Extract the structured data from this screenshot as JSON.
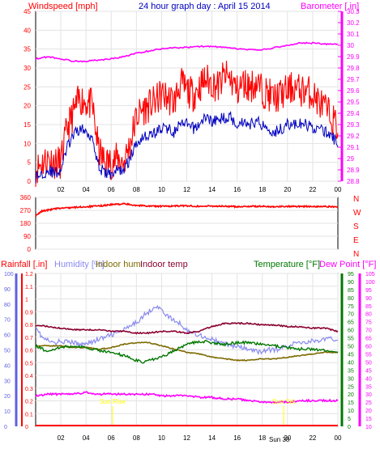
{
  "header": {
    "title": "24 hour graph day : April 15 2014",
    "left_label": "Windspeed [mph]",
    "right_label": "Barometer [.in]"
  },
  "colors": {
    "background": "#ffffff",
    "frame": "#000000",
    "grid": "#e3e3e3",
    "wind": "#ff0000",
    "wind_avg": "#0000c0",
    "barometer": "#ff00ff",
    "direction": "#ff0000",
    "humidity": "#8a8af0",
    "indoor_hum": "#7d6a00",
    "indoor_temp": "#8a0030",
    "temperature": "#007800",
    "dew_point": "#ff00ff",
    "rain_axis": "#ff0000",
    "hum_axis": "#6060e0",
    "marker": "#ffff00"
  },
  "chart_data": [
    {
      "id": "wind",
      "type": "line",
      "x_label": "hour",
      "x_ticks": [
        "02",
        "04",
        "06",
        "08",
        "10",
        "12",
        "14",
        "16",
        "18",
        "20",
        "22",
        "00"
      ],
      "left_axis": {
        "label": "Windspeed [mph]",
        "ticks": [
          0,
          5,
          10,
          15,
          20,
          25,
          30,
          35,
          40,
          45
        ],
        "ylim": [
          0,
          45
        ]
      },
      "right_axis": {
        "label": "Barometer [.in]",
        "ticks": [
          "28.8",
          "28.9",
          "29",
          "29.1",
          "29.2",
          "29.3",
          "29.4",
          "29.5",
          "29.6",
          "29.7",
          "29.8",
          "29.9",
          "30",
          "30.1",
          "30.2",
          "30.3"
        ],
        "ylim": [
          28.8,
          30.3
        ]
      },
      "series": [
        {
          "name": "Windspeed [mph]",
          "axis": "left",
          "shape": "gust",
          "x": [
            0,
            0.5,
            1,
            1.5,
            2,
            2.5,
            3,
            3.5,
            4,
            4.5,
            5,
            5.5,
            6,
            6.5,
            7,
            7.5,
            8,
            8.5,
            9,
            9.5,
            10,
            10.5,
            11,
            11.5,
            12,
            12.5,
            13,
            13.5,
            14,
            14.5,
            15,
            15.5,
            16,
            16.5,
            17,
            17.5,
            18,
            18.5,
            19,
            19.5,
            20,
            20.5,
            21,
            21.5,
            22,
            22.5,
            23,
            23.5,
            24
          ],
          "y": [
            3,
            5,
            6,
            5,
            5,
            14,
            18,
            22,
            21,
            20,
            8,
            5,
            5,
            6,
            5,
            10,
            17,
            19,
            20,
            21,
            23,
            22,
            21,
            26,
            24,
            23,
            25,
            27,
            26,
            25,
            28,
            27,
            24,
            26,
            25,
            26,
            24,
            23,
            22,
            23,
            24,
            25,
            24,
            24,
            23,
            21,
            19,
            17,
            14
          ]
        },
        {
          "name": "",
          "axis": "left",
          "shape": "avg",
          "x": [
            0,
            0.5,
            1,
            1.5,
            2,
            2.5,
            3,
            3.5,
            4,
            4.5,
            5,
            5.5,
            6,
            6.5,
            7,
            7.5,
            8,
            8.5,
            9,
            9.5,
            10,
            10.5,
            11,
            11.5,
            12,
            12.5,
            13,
            13.5,
            14,
            14.5,
            15,
            15.5,
            16,
            16.5,
            17,
            17.5,
            18,
            18.5,
            19,
            19.5,
            20,
            20.5,
            21,
            21.5,
            22,
            22.5,
            23,
            23.5,
            24
          ],
          "y": [
            1,
            2,
            3,
            2,
            3,
            9,
            12,
            14,
            13,
            12,
            4,
            2,
            2,
            3,
            3,
            6,
            10,
            12,
            12,
            13,
            14,
            14,
            13,
            15,
            15,
            14,
            15,
            17,
            16,
            16,
            17,
            17,
            15,
            16,
            15,
            16,
            15,
            14,
            13,
            14,
            15,
            15,
            15,
            15,
            14,
            14,
            13,
            12,
            10
          ]
        },
        {
          "name": "Barometer [.in]",
          "axis": "right",
          "shape": "baro",
          "x": [
            0,
            1,
            2,
            3,
            4,
            5,
            6,
            7,
            8,
            9,
            10,
            11,
            12,
            13,
            14,
            15,
            16,
            17,
            18,
            19,
            20,
            21,
            22,
            23,
            24
          ],
          "y": [
            29.88,
            29.9,
            29.88,
            29.86,
            29.86,
            29.87,
            29.88,
            29.9,
            29.93,
            29.95,
            29.97,
            29.98,
            29.98,
            29.99,
            29.99,
            29.98,
            29.97,
            29.96,
            29.96,
            29.98,
            30,
            30.02,
            30.02,
            30.01,
            30.01
          ]
        }
      ]
    },
    {
      "id": "direction",
      "type": "line",
      "left_axis": {
        "ticks": [
          0,
          90,
          180,
          270,
          360
        ],
        "ylim": [
          0,
          360
        ]
      },
      "compass": [
        "N",
        "W",
        "S",
        "E",
        "N"
      ],
      "series": [
        {
          "name": "",
          "shape": "dir",
          "x": [
            0,
            0.5,
            1,
            1.5,
            2,
            3,
            4,
            5,
            6,
            7,
            8,
            9,
            10,
            11,
            12,
            13,
            14,
            15,
            16,
            17,
            18,
            19,
            20,
            21,
            22,
            23,
            24
          ],
          "y": [
            230,
            265,
            272,
            280,
            285,
            290,
            295,
            300,
            310,
            315,
            305,
            300,
            298,
            300,
            302,
            298,
            300,
            298,
            296,
            298,
            297,
            296,
            298,
            298,
            296,
            296,
            296
          ]
        }
      ]
    },
    {
      "id": "climate",
      "type": "line",
      "x_ticks": [
        "02",
        "04",
        "06",
        "08",
        "10",
        "12",
        "14",
        "16",
        "18",
        "20",
        "22",
        "00"
      ],
      "header_labels": {
        "rain": "Rainfall [.in]",
        "humidity": "Humidity [%]",
        "indoor_hum": "Indoor hum",
        "indoor_temp": "Indoor temp",
        "temperature": "Temperature [°F]",
        "dew_point": "Dew Point [°F]"
      },
      "axes": {
        "humidity": {
          "ticks": [
            0,
            10,
            20,
            30,
            40,
            50,
            60,
            70,
            80,
            90,
            100
          ],
          "ylim": [
            0,
            100
          ]
        },
        "rain": {
          "ticks": [
            "0",
            "0.1",
            "0.2",
            "0.3",
            "0.4",
            "0.5",
            "0.6",
            "0.7",
            "0.8",
            "0.9",
            "1",
            "1.1",
            "1.2"
          ],
          "ylim": [
            0,
            1.2
          ]
        },
        "temperature": {
          "ticks": [
            0,
            5,
            10,
            15,
            20,
            25,
            30,
            35,
            40,
            45,
            50,
            55,
            60,
            65,
            70,
            75,
            80,
            85,
            90,
            95
          ],
          "ylim": [
            0,
            95
          ]
        },
        "dew_point": {
          "ticks": [
            10,
            15,
            20,
            25,
            30,
            35,
            40,
            45,
            50,
            55,
            60,
            65,
            70,
            75,
            80,
            85,
            90,
            95,
            100,
            105
          ],
          "ylim": [
            10,
            105
          ]
        }
      },
      "events": [
        {
          "label": "Sun Rise",
          "hour": 6.1
        },
        {
          "label": "Sun Set",
          "hour": 19.7
        }
      ],
      "footer_label": "Sun 38",
      "series": [
        {
          "name": "Humidity [%]",
          "axis": "humidity",
          "shape": "humid",
          "x": [
            0,
            0.5,
            1,
            1.5,
            2,
            2.5,
            3,
            3.5,
            4,
            4.5,
            5,
            5.5,
            6,
            6.5,
            7,
            7.5,
            8,
            8.5,
            9,
            9.5,
            10,
            10.5,
            11,
            11.5,
            12,
            12.5,
            13,
            13.5,
            14,
            14.5,
            15,
            15.5,
            16,
            16.5,
            17,
            17.5,
            18,
            18.5,
            19,
            19.5,
            20,
            20.5,
            21,
            21.5,
            22,
            22.5,
            23,
            23.5,
            24
          ],
          "y": [
            66,
            58,
            56,
            54,
            56,
            55,
            55,
            53,
            55,
            55,
            57,
            58,
            60,
            61,
            63,
            65,
            68,
            72,
            75,
            79,
            76,
            72,
            69,
            67,
            63,
            61,
            60,
            58,
            57,
            55,
            54,
            53,
            52,
            51,
            50,
            49,
            49,
            50,
            50,
            51,
            53,
            54,
            55,
            55,
            56,
            56,
            57,
            57,
            57
          ]
        },
        {
          "name": "Indoor hum",
          "axis": "temperature",
          "shape": "ih",
          "x": [
            0,
            1,
            2,
            3,
            4,
            5,
            6,
            7,
            8,
            9,
            10,
            11,
            12,
            13,
            14,
            15,
            16,
            17,
            18,
            19,
            20,
            21,
            22,
            23,
            24
          ],
          "y": [
            50,
            50,
            50,
            49,
            49,
            48,
            49,
            51,
            52,
            52,
            50,
            48,
            46,
            45,
            43,
            42,
            41,
            41,
            42,
            42,
            43,
            44,
            45,
            46,
            46
          ]
        },
        {
          "name": "Indoor temp",
          "axis": "temperature",
          "shape": "it",
          "x": [
            0,
            1,
            2,
            3,
            4,
            5,
            6,
            7,
            8,
            9,
            10,
            11,
            12,
            13,
            14,
            15,
            16,
            17,
            18,
            19,
            20,
            21,
            22,
            23,
            24
          ],
          "y": [
            63,
            62,
            61,
            60,
            60,
            60,
            59,
            59,
            58,
            58,
            59,
            59,
            58,
            59,
            62,
            64,
            64,
            64,
            63,
            63,
            62,
            62,
            61,
            61,
            59
          ]
        },
        {
          "name": "Temperature [°F]",
          "axis": "temperature",
          "shape": "temp",
          "x": [
            0,
            0.5,
            1,
            1.5,
            2,
            3,
            4,
            5,
            6,
            7,
            8,
            8.5,
            9,
            10,
            11,
            12,
            13,
            14,
            15,
            16,
            17,
            18,
            19,
            20,
            21,
            22,
            23,
            24
          ],
          "y": [
            50,
            48,
            47,
            48,
            49,
            50,
            49,
            47,
            46,
            44,
            41,
            40,
            41,
            43,
            47,
            51,
            53,
            52,
            51,
            52,
            52,
            51,
            50,
            49,
            48,
            48,
            47,
            46
          ]
        },
        {
          "name": "Dew Point [°F]",
          "axis": "dew_point",
          "shape": "dew",
          "x": [
            0,
            1,
            2,
            3,
            4,
            5,
            6,
            7,
            8,
            9,
            10,
            11,
            12,
            13,
            14,
            15,
            16,
            17,
            18,
            19,
            20,
            21,
            22,
            23,
            24
          ],
          "y": [
            29,
            30,
            30,
            30,
            31,
            30,
            30,
            30,
            30,
            30,
            29,
            29,
            29,
            28,
            28,
            27,
            27,
            26,
            25,
            25,
            25,
            26,
            26,
            26,
            26
          ]
        }
      ]
    }
  ]
}
